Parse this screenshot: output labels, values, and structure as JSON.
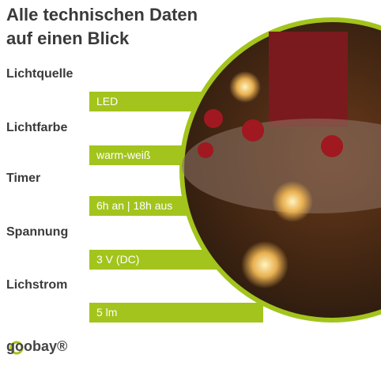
{
  "header": {
    "title_line1": "Alle technischen Daten",
    "title_line2": "auf einen Blick"
  },
  "specs": [
    {
      "label": "Lichtquelle",
      "value": "LED"
    },
    {
      "label": "Lichtfarbe",
      "value": "warm-weiß"
    },
    {
      "label": "Timer",
      "value": "6h an | 18h aus"
    },
    {
      "label": "Spannung",
      "value": "3 V (DC)"
    },
    {
      "label": "Lichstrom",
      "value": "5 lm"
    }
  ],
  "logo": {
    "text": "goobay®"
  }
}
